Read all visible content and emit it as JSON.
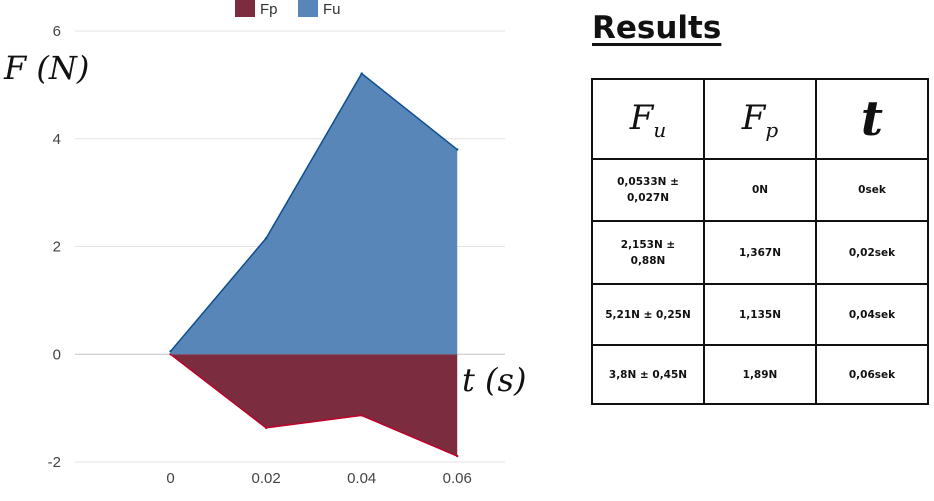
{
  "chart_data": {
    "type": "area",
    "x": [
      0,
      0.02,
      0.04,
      0.06
    ],
    "x_tick_labels": [
      "0",
      "0.02",
      "0.04",
      "0.06"
    ],
    "y_tick_labels": [
      "6",
      "4",
      "2",
      "0",
      "-2"
    ],
    "ylim": [
      -2,
      6
    ],
    "xlim": [
      -0.02,
      0.07
    ],
    "grid": true,
    "legend_position": "top-center",
    "ylabel": "F (N)",
    "xlabel": "t (s)",
    "series": [
      {
        "name": "Fp",
        "values": [
          0,
          -1.367,
          -1.135,
          -1.89
        ],
        "color": "#7b2c3e",
        "stroke": "#c0002a"
      },
      {
        "name": "Fu",
        "values": [
          0.0533,
          2.153,
          5.21,
          3.8
        ],
        "color": "#5886b8",
        "stroke": "#0d4f8f"
      }
    ]
  },
  "results": {
    "title": "Results",
    "headers": {
      "fu": "F",
      "fu_sub": "u",
      "fp": "F",
      "fp_sub": "p",
      "t": "t"
    },
    "rows": [
      {
        "fu": "0,0533N ±\n0,027N",
        "fp": "0N",
        "t": "0sek"
      },
      {
        "fu": "2,153N ±\n0,88N",
        "fp": "1,367N",
        "t": "0,02sek"
      },
      {
        "fu": "5,21N ± 0,25N",
        "fp": "1,135N",
        "t": "0,04sek"
      },
      {
        "fu": "3,8N ± 0,45N",
        "fp": "1,89N",
        "t": "0,06sek"
      }
    ]
  }
}
